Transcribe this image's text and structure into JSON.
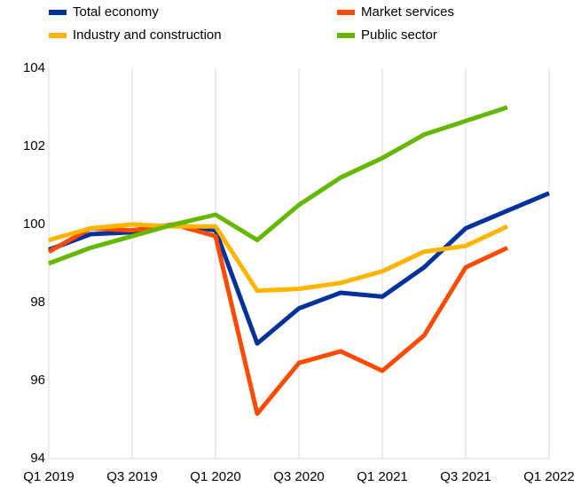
{
  "chart_data": {
    "type": "line",
    "categories": [
      "Q1 2019",
      null,
      "Q3 2019",
      null,
      "Q1 2020",
      null,
      "Q3 2020",
      null,
      "Q1 2021",
      null,
      "Q3 2021",
      null,
      "Q1 2022"
    ],
    "series": [
      {
        "name": "Total economy",
        "color": "#003299",
        "values": [
          99.35,
          99.75,
          99.8,
          100.0,
          99.85,
          96.95,
          97.85,
          98.25,
          98.15,
          98.9,
          99.9,
          100.35,
          100.8
        ]
      },
      {
        "name": "Market services",
        "color": "#ff4b00",
        "values": [
          99.3,
          99.9,
          99.85,
          100.0,
          99.7,
          95.15,
          96.45,
          96.75,
          96.25,
          97.15,
          98.9,
          99.4,
          null
        ]
      },
      {
        "name": "Industry and construction",
        "color": "#ffb400",
        "values": [
          99.6,
          99.9,
          100.0,
          99.95,
          99.95,
          98.3,
          98.35,
          98.5,
          98.8,
          99.3,
          99.45,
          99.95,
          null
        ]
      },
      {
        "name": "Public sector",
        "color": "#65b800",
        "values": [
          99.0,
          99.4,
          99.7,
          100.0,
          100.25,
          99.6,
          100.5,
          101.2,
          101.7,
          102.3,
          102.65,
          103.0,
          null
        ]
      }
    ],
    "ylim": [
      94,
      104
    ],
    "yticks": [
      94,
      96,
      98,
      100,
      102,
      104
    ],
    "grid": true,
    "legend": "top"
  }
}
